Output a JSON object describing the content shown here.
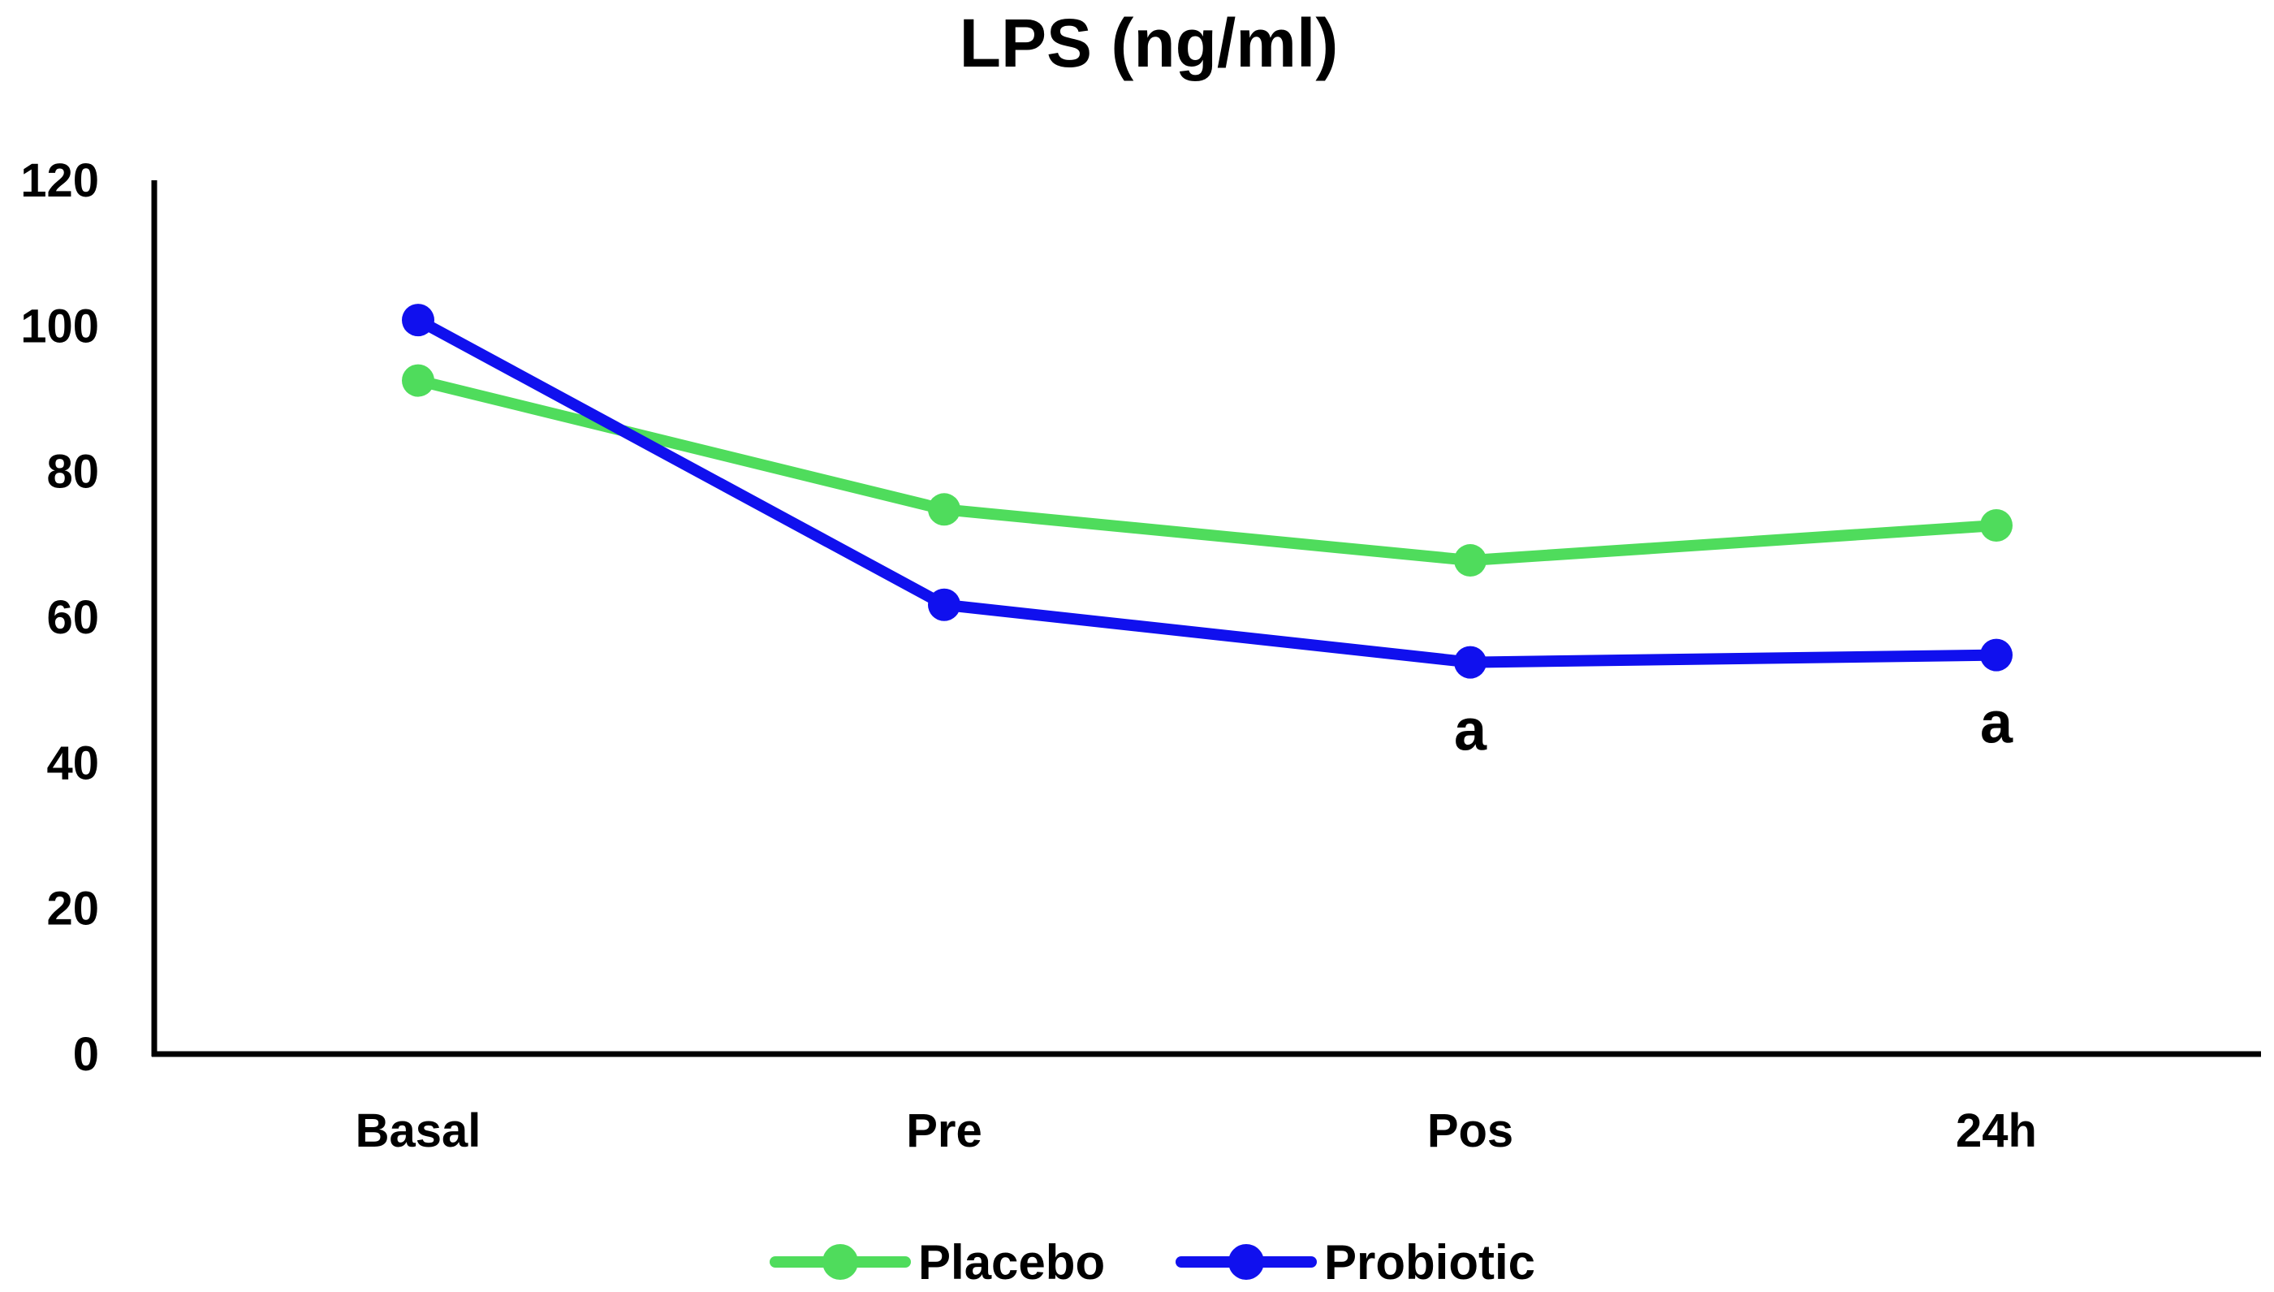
{
  "chart_data": {
    "type": "line",
    "title": "LPS (ng/ml)",
    "xlabel": "",
    "ylabel": "",
    "categories": [
      "Basal",
      "Pre",
      "Pos",
      "24h"
    ],
    "ylim": [
      0,
      120
    ],
    "yticks": [
      0,
      20,
      40,
      60,
      80,
      100,
      120
    ],
    "ytick_labels": [
      "0",
      "20",
      "40",
      "60",
      "80",
      "100",
      "120"
    ],
    "grid": false,
    "legend_position": "bottom-center",
    "series": [
      {
        "name": "Placebo",
        "color": "#4fdc5c",
        "values": [
          92.5,
          74.8,
          67.8,
          72.6
        ]
      },
      {
        "name": "Probiotic",
        "color": "#1010ee",
        "values": [
          100.8,
          61.7,
          53.8,
          54.8
        ]
      }
    ],
    "annotations": [
      {
        "category": "Pos",
        "text": "a"
      },
      {
        "category": "24h",
        "text": "a"
      }
    ]
  }
}
